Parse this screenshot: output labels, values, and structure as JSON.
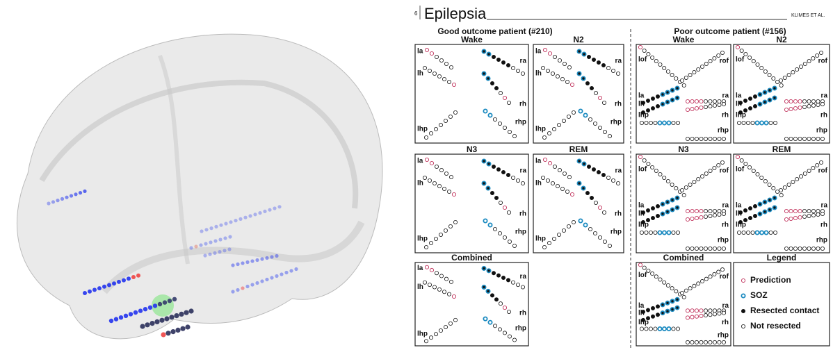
{
  "header": {
    "page": "6",
    "journal": "Epilepsia",
    "author": "KLIMES ET AL."
  },
  "good": {
    "title": "Good outcome patient (#210)",
    "panels": [
      {
        "title": "Wake",
        "labels": [
          "la",
          "lh",
          "lhp",
          "ra",
          "rh",
          "rhp"
        ]
      },
      {
        "title": "N2",
        "labels": [
          "la",
          "lh",
          "lhp",
          "ra",
          "rh",
          "rhp"
        ]
      },
      {
        "title": "N3",
        "labels": [
          "la",
          "lh",
          "lhp",
          "ra",
          "rh",
          "rhp"
        ]
      },
      {
        "title": "REM",
        "labels": [
          "la",
          "lh",
          "lhp",
          "ra",
          "rh",
          "rhp"
        ]
      },
      {
        "title": "Combined",
        "labels": [
          "la",
          "lh",
          "lhp",
          "ra",
          "rh",
          "rhp"
        ]
      }
    ]
  },
  "poor": {
    "title": "Poor outcome patient (#156)",
    "panels": [
      {
        "title": "Wake",
        "labels": [
          "lof",
          "rof",
          "la",
          "lh",
          "lhp",
          "ra",
          "rh",
          "rhp"
        ]
      },
      {
        "title": "N2",
        "labels": [
          "lof",
          "rof",
          "la",
          "lh",
          "lhp",
          "ra",
          "rh",
          "rhp"
        ]
      },
      {
        "title": "N3",
        "labels": [
          "lof",
          "rof",
          "la",
          "lh",
          "lhp",
          "ra",
          "rh",
          "rhp"
        ]
      },
      {
        "title": "REM",
        "labels": [
          "lof",
          "rof",
          "la",
          "lh",
          "lhp",
          "ra",
          "rh",
          "rhp"
        ]
      },
      {
        "title": "Combined",
        "labels": [
          "lof",
          "rof",
          "la",
          "lh",
          "lhp",
          "ra",
          "rh",
          "rhp"
        ]
      }
    ]
  },
  "legend": {
    "title": "Legend",
    "items": [
      "Prediction",
      "SOZ",
      "Resected contact",
      "Not resected"
    ]
  }
}
